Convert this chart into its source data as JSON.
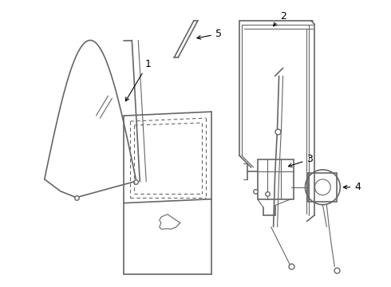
{
  "background_color": "#ffffff",
  "line_color": "#666666",
  "label_color": "#000000",
  "figsize": [
    4.9,
    3.6
  ],
  "dpi": 100
}
